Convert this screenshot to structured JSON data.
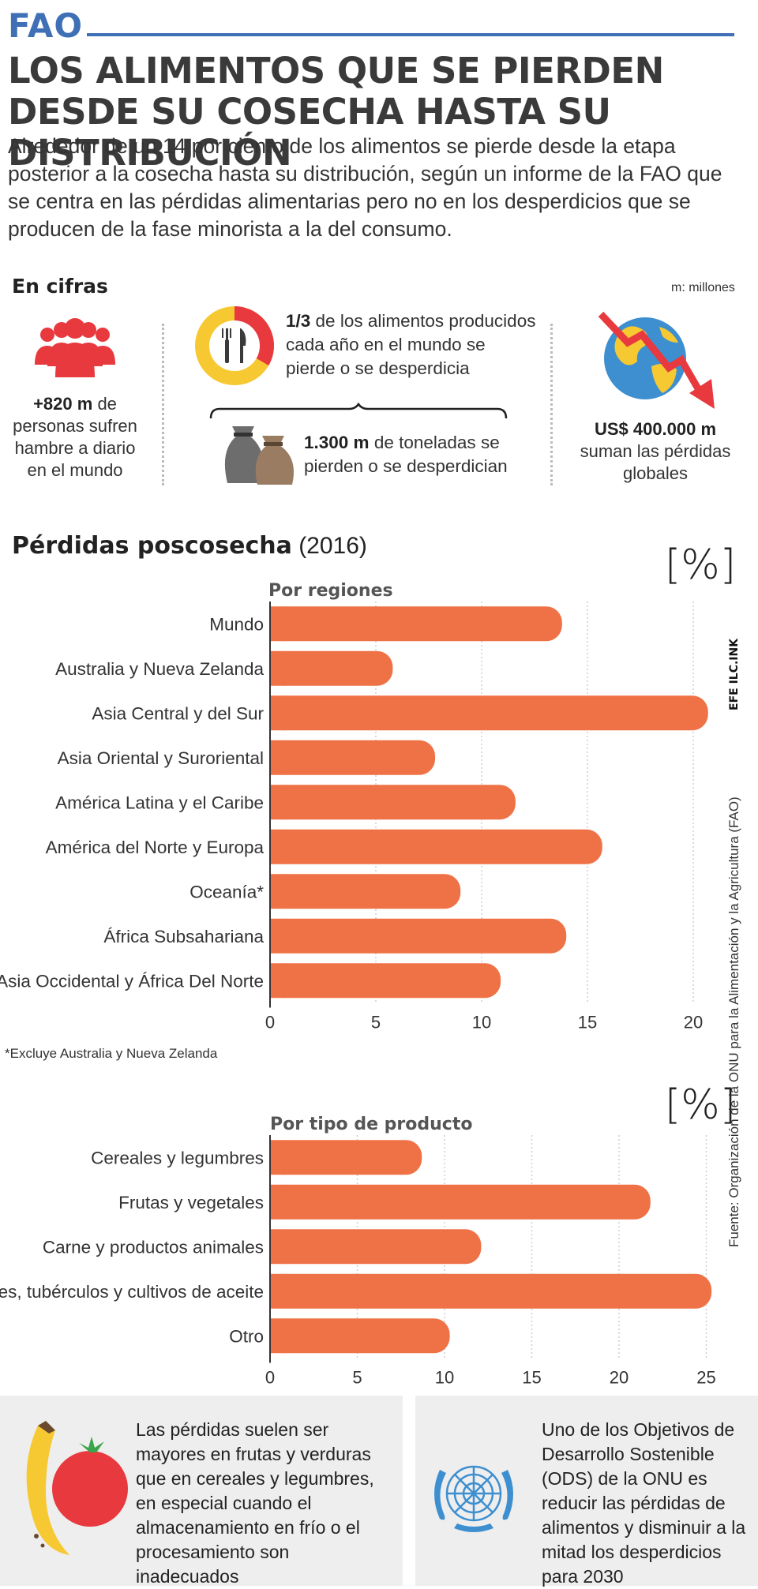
{
  "header": {
    "brand": "FAO",
    "title": "LOS ALIMENTOS QUE SE PIERDEN DESDE SU COSECHA HASTA SU DISTRIBUCIÓN",
    "intro": "Alrededor de un 14 por ciento de los alimentos se pierde desde la etapa posterior a la cosecha hasta su distribución, según un informe de la FAO que se centra en las pérdidas alimentarias pero no en los desperdicios que se producen de la fase minorista a la del consumo."
  },
  "cifras": {
    "title": "En cifras",
    "units": "m: millones",
    "hunger": {
      "value": "+820 m",
      "text": "de personas sufren hambre a diario en el mundo",
      "icon": "people-icon"
    },
    "third": {
      "value": "1/3",
      "text": "de los alimentos producidos cada año en el mundo se pierde o se desperdicia",
      "icon": "plate-pie-icon"
    },
    "tons": {
      "value": "1.300 m",
      "text": "de toneladas se pierden o se desperdician",
      "icon": "sacks-icon"
    },
    "losses": {
      "value": "US$ 400.000 m",
      "text": "suman las pérdidas globales",
      "icon": "globe-falling-arrow-icon"
    },
    "colors": {
      "red": "#e8393f",
      "yellow": "#f6c933",
      "bar": "#ef7246"
    }
  },
  "poscosecha": {
    "title": "Pérdidas poscosecha",
    "year": "(2016)",
    "footnote": "*Excluye Australia y Nueva Zelanda",
    "source": "Fuente: Organización de la ONU para la Alimentación y la Agricultura (FAO)",
    "agency": "EFE ILC.INK"
  },
  "chart_data": [
    {
      "type": "bar",
      "orientation": "horizontal",
      "title": "Por regiones",
      "unit_label": "[%]",
      "categories": [
        "Mundo",
        "Australia y Nueva Zelanda",
        "Asia Central y del Sur",
        "Asia Oriental y Suroriental",
        "América Latina y el Caribe",
        "América del Norte y Europa",
        "Oceanía*",
        "África Subsahariana",
        "Asia Occidental y África Del Norte"
      ],
      "values": [
        13.8,
        5.8,
        20.7,
        7.8,
        11.6,
        15.7,
        9.0,
        14.0,
        10.9
      ],
      "xticks": [
        "0",
        "5",
        "10",
        "15",
        "20"
      ],
      "xlim": [
        0,
        21
      ],
      "grid": true,
      "color": "#ef7246"
    },
    {
      "type": "bar",
      "orientation": "horizontal",
      "title": "Por tipo de producto",
      "unit_label": "[%]",
      "categories": [
        "Cereales y legumbres",
        "Frutas y vegetales",
        "Carne y productos animales",
        "Raíces, tubérculos y cultivos de aceite",
        "Otro"
      ],
      "values": [
        8.7,
        21.8,
        12.1,
        25.3,
        10.3
      ],
      "xticks": [
        "0",
        "5",
        "10",
        "15",
        "20",
        "25"
      ],
      "xlim": [
        0,
        25.5
      ],
      "grid": true,
      "color": "#ef7246"
    }
  ],
  "panels": {
    "left": {
      "text": "Las pérdidas suelen ser mayores en frutas y verduras que en cereales y legumbres, en especial cuando el almacenamiento en frío o el procesamiento son inadecuados",
      "icon": "banana-tomato-icon"
    },
    "right": {
      "text": "Uno de los Objetivos de Desarrollo Sostenible (ODS) de la ONU es reducir las pérdidas de alimentos y disminuir a la mitad los desperdicios para 2030",
      "icon": "un-emblem-icon"
    }
  }
}
